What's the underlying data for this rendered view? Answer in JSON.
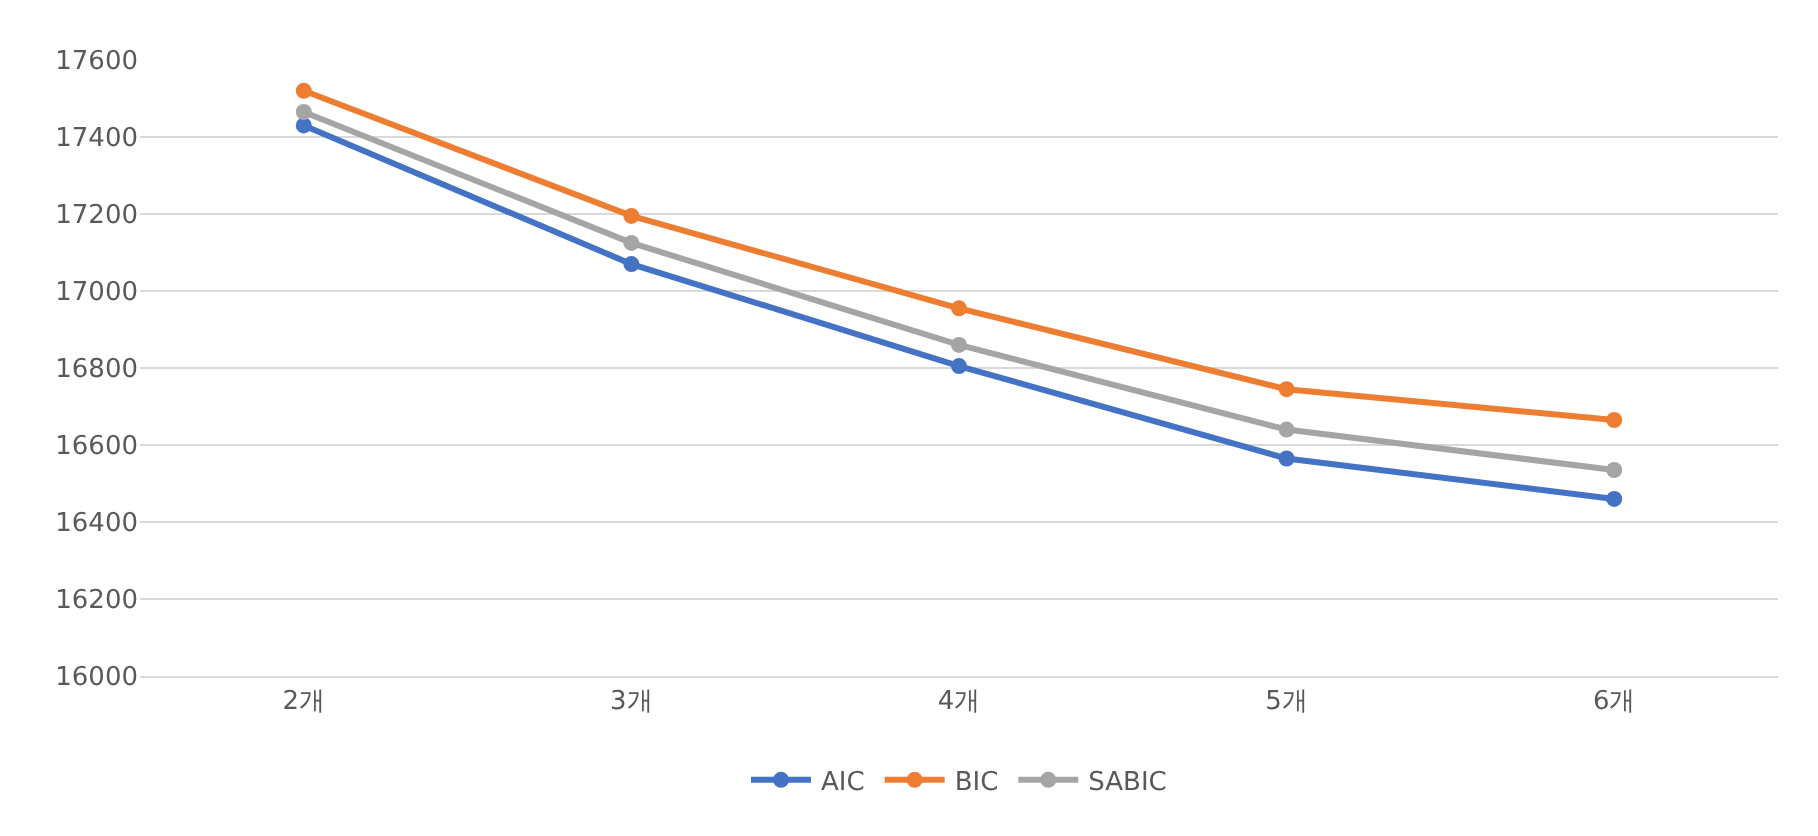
{
  "chart_data": {
    "type": "line",
    "categories": [
      "2개",
      "3개",
      "4개",
      "5개",
      "6개"
    ],
    "series": [
      {
        "name": "AIC",
        "color": "#4472c4",
        "values": [
          17430,
          17070,
          16805,
          16565,
          16460
        ]
      },
      {
        "name": "BIC",
        "color": "#ed7d31",
        "values": [
          17520,
          17195,
          16955,
          16745,
          16665
        ]
      },
      {
        "name": "SABIC",
        "color": "#a5a5a5",
        "values": [
          17465,
          17125,
          16860,
          16640,
          16535
        ]
      }
    ],
    "ylim": [
      16000,
      17600
    ],
    "yticks": [
      16000,
      16200,
      16400,
      16600,
      16800,
      17000,
      17200,
      17400,
      17600
    ],
    "grid": "y",
    "legend": "bottom",
    "marker": "circle",
    "line_style": "solid"
  }
}
